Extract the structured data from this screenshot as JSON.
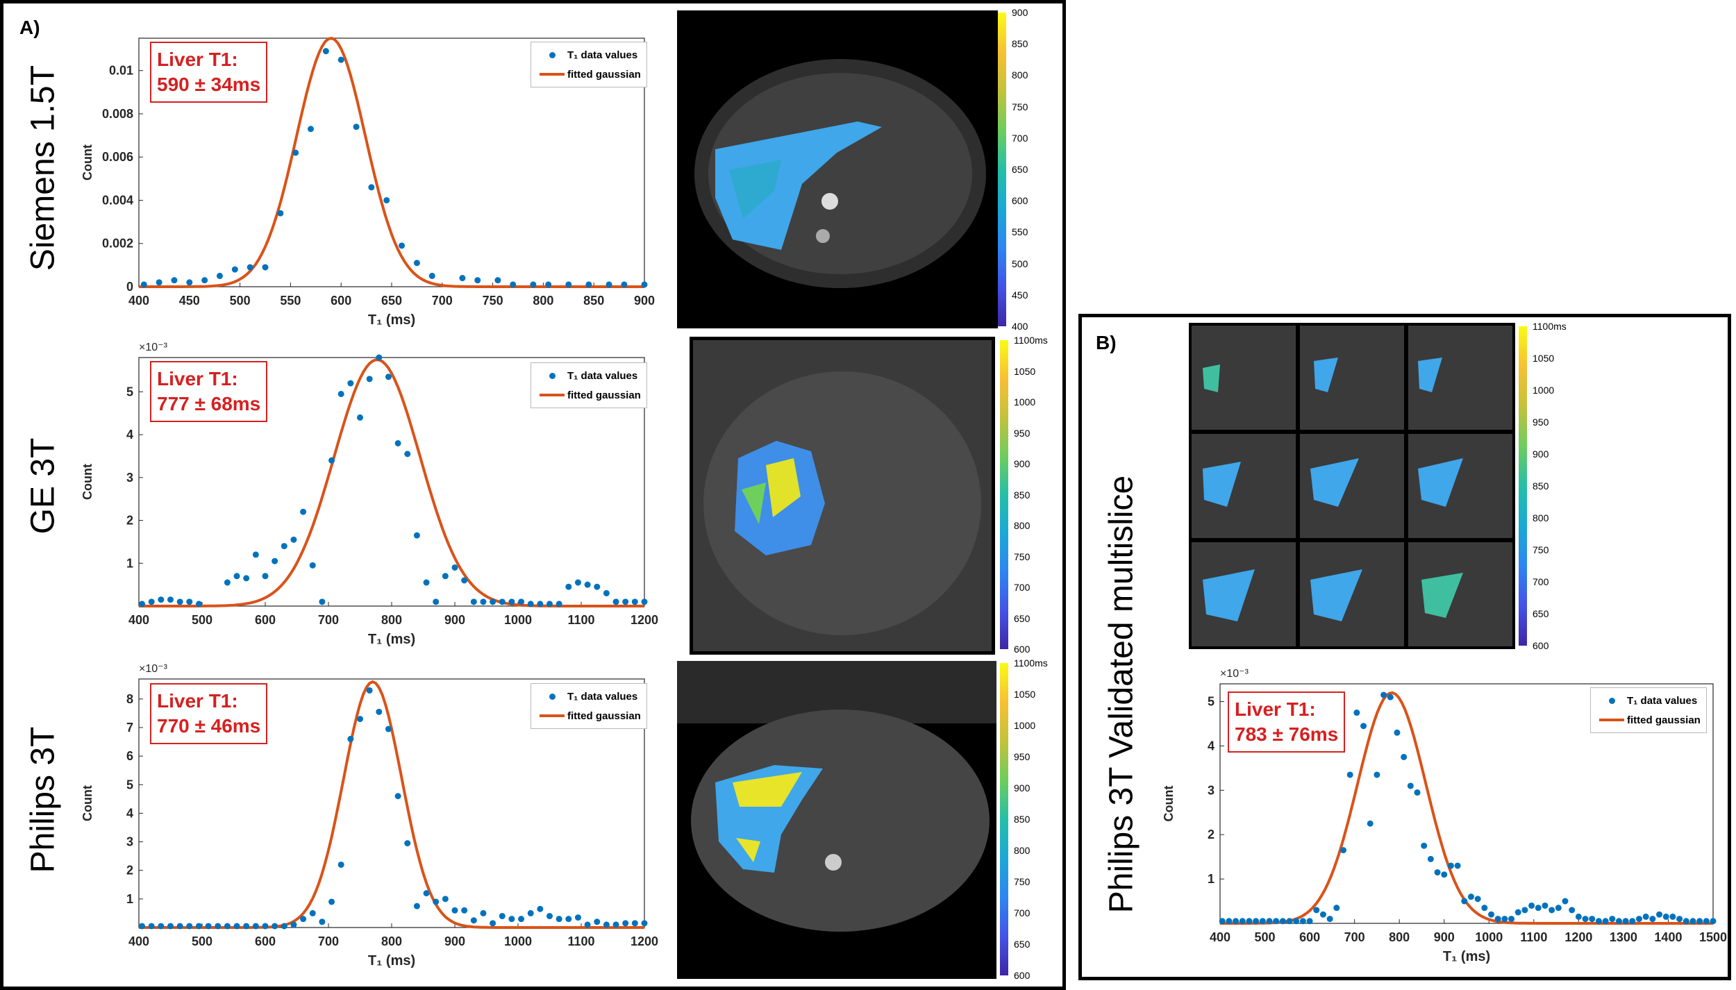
{
  "panel_a_label": "A)",
  "panel_b_label": "B)",
  "colors": {
    "accent": "#d62020",
    "data": "#0072bd",
    "fit": "#d95319"
  },
  "chart_data": [
    {
      "id": "siemens",
      "type": "scatter",
      "row_label": "Siemens 1.5T",
      "annotation": [
        "Liver T1:",
        "590 ± 34ms"
      ],
      "legend": [
        "T₁ data values",
        "fitted gaussian"
      ],
      "xlabel": "T₁ (ms)",
      "ylabel": "Count",
      "exponent": "",
      "xlim": [
        400,
        900
      ],
      "ylim": [
        0,
        0.0115
      ],
      "xticks": [
        400,
        450,
        500,
        550,
        600,
        650,
        700,
        750,
        800,
        850,
        900
      ],
      "yticks": [
        0,
        0.002,
        0.004,
        0.006,
        0.008,
        0.01
      ],
      "yticklabels": [
        "0",
        "0.002",
        "0.004",
        "0.006",
        "0.008",
        "0.01"
      ],
      "fit": {
        "mu": 590,
        "sigma": 34,
        "amp": 0.0115
      },
      "series": [
        {
          "name": "T₁ data values",
          "x": [
            405,
            420,
            435,
            450,
            465,
            480,
            495,
            510,
            525,
            540,
            555,
            570,
            585,
            600,
            615,
            630,
            645,
            660,
            675,
            690,
            720,
            735,
            755,
            770,
            790,
            805,
            825,
            845,
            865,
            880,
            900
          ],
          "y": [
            0.0001,
            0.0002,
            0.0003,
            0.0002,
            0.0003,
            0.0005,
            0.0008,
            0.0009,
            0.0009,
            0.0034,
            0.0062,
            0.0073,
            0.0109,
            0.0105,
            0.0074,
            0.0046,
            0.004,
            0.0019,
            0.0011,
            0.0005,
            0.0004,
            0.0003,
            0.0003,
            0.0001,
            0.0001,
            0.0001,
            0.0001,
            0.0001,
            0.0001,
            0.0001,
            0.0001
          ]
        }
      ],
      "colorbar": {
        "ticks": [
          "400",
          "450",
          "500",
          "550",
          "600",
          "650",
          "700",
          "750",
          "800",
          "850",
          "900"
        ],
        "top_label": "900ms"
      }
    },
    {
      "id": "ge",
      "type": "scatter",
      "row_label": "GE 3T",
      "annotation": [
        "Liver T1:",
        "777 ± 68ms"
      ],
      "legend": [
        "T₁ data values",
        "fitted gaussian"
      ],
      "xlabel": "T₁ (ms)",
      "ylabel": "Count",
      "exponent": "×10⁻³",
      "xlim": [
        400,
        1200
      ],
      "ylim": [
        0,
        5.8
      ],
      "xticks": [
        400,
        500,
        600,
        700,
        800,
        900,
        1000,
        1100,
        1200
      ],
      "yticks": [
        1,
        2,
        3,
        4,
        5
      ],
      "yticklabels": [
        "1",
        "2",
        "3",
        "4",
        "5"
      ],
      "fit": {
        "mu": 777,
        "sigma": 68,
        "amp": 5.75
      },
      "series": [
        {
          "name": "T₁ data values",
          "x": [
            405,
            420,
            435,
            450,
            465,
            480,
            495,
            540,
            555,
            570,
            585,
            600,
            615,
            630,
            645,
            660,
            675,
            690,
            705,
            720,
            735,
            750,
            765,
            780,
            795,
            810,
            825,
            840,
            855,
            870,
            885,
            900,
            915,
            930,
            945,
            960,
            975,
            990,
            1005,
            1020,
            1035,
            1050,
            1065,
            1080,
            1095,
            1110,
            1125,
            1140,
            1155,
            1170,
            1185,
            1200
          ],
          "y": [
            0.05,
            0.1,
            0.15,
            0.15,
            0.1,
            0.1,
            0.05,
            0.55,
            0.7,
            0.65,
            1.2,
            0.7,
            1.05,
            1.4,
            1.55,
            2.2,
            0.95,
            0.1,
            3.4,
            4.95,
            5.2,
            4.4,
            5.3,
            5.8,
            5.35,
            3.8,
            3.55,
            1.65,
            0.55,
            0.1,
            0.7,
            0.9,
            0.6,
            0.1,
            0.1,
            0.1,
            0.1,
            0.1,
            0.1,
            0.05,
            0.05,
            0.05,
            0.05,
            0.45,
            0.55,
            0.5,
            0.45,
            0.3,
            0.1,
            0.1,
            0.1,
            0.1
          ]
        }
      ],
      "colorbar": {
        "ticks": [
          "600",
          "650",
          "700",
          "750",
          "800",
          "850",
          "900",
          "950",
          "1000",
          "1050",
          "1100ms"
        ]
      }
    },
    {
      "id": "philips",
      "type": "scatter",
      "row_label": "Philips 3T",
      "annotation": [
        "Liver T1:",
        "770 ± 46ms"
      ],
      "legend": [
        "T₁ data values",
        "fitted gaussian"
      ],
      "xlabel": "T₁ (ms)",
      "ylabel": "Count",
      "exponent": "×10⁻³",
      "xlim": [
        400,
        1200
      ],
      "ylim": [
        0,
        8.7
      ],
      "xticks": [
        400,
        500,
        600,
        700,
        800,
        900,
        1000,
        1100,
        1200
      ],
      "yticks": [
        1,
        2,
        3,
        4,
        5,
        6,
        7,
        8
      ],
      "yticklabels": [
        "1",
        "2",
        "3",
        "4",
        "5",
        "6",
        "7",
        "8"
      ],
      "fit": {
        "mu": 770,
        "sigma": 46,
        "amp": 8.6
      },
      "series": [
        {
          "name": "T₁ data values",
          "x": [
            405,
            420,
            435,
            450,
            465,
            480,
            495,
            510,
            525,
            540,
            555,
            570,
            585,
            600,
            615,
            630,
            645,
            660,
            675,
            690,
            705,
            720,
            735,
            750,
            765,
            780,
            795,
            810,
            825,
            840,
            855,
            870,
            885,
            900,
            915,
            930,
            945,
            960,
            975,
            990,
            1005,
            1020,
            1035,
            1050,
            1065,
            1080,
            1095,
            1110,
            1125,
            1140,
            1155,
            1170,
            1185,
            1200
          ],
          "y": [
            0.05,
            0.05,
            0.05,
            0.05,
            0.05,
            0.05,
            0.05,
            0.05,
            0.05,
            0.05,
            0.05,
            0.05,
            0.05,
            0.05,
            0.05,
            0.05,
            0.1,
            0.3,
            0.5,
            0.2,
            0.9,
            2.2,
            6.6,
            7.3,
            8.3,
            7.55,
            6.95,
            4.6,
            2.95,
            0.75,
            1.2,
            0.9,
            1.0,
            0.6,
            0.6,
            0.25,
            0.5,
            0.15,
            0.4,
            0.3,
            0.3,
            0.5,
            0.65,
            0.4,
            0.3,
            0.3,
            0.35,
            0.1,
            0.2,
            0.1,
            0.1,
            0.15,
            0.15,
            0.15
          ]
        }
      ],
      "colorbar": {
        "ticks": [
          "600",
          "650",
          "700",
          "750",
          "800",
          "850",
          "900",
          "950",
          "1000",
          "1050",
          "1100ms"
        ]
      }
    },
    {
      "id": "multislice",
      "type": "scatter",
      "row_label": "Philips 3T Validated multislice",
      "annotation": [
        "Liver T1:",
        "783 ± 76ms"
      ],
      "legend": [
        "T₁ data values",
        "fitted gaussian"
      ],
      "xlabel": "T₁ (ms)",
      "ylabel": "Count",
      "exponent": "×10⁻³",
      "xlim": [
        400,
        1500
      ],
      "ylim": [
        0,
        5.4
      ],
      "xticks": [
        400,
        500,
        600,
        700,
        800,
        900,
        1000,
        1100,
        1200,
        1300,
        1400,
        1500
      ],
      "yticks": [
        1,
        2,
        3,
        4,
        5
      ],
      "yticklabels": [
        "1",
        "2",
        "3",
        "4",
        "5"
      ],
      "fit": {
        "mu": 783,
        "sigma": 76,
        "amp": 5.2
      },
      "series": [
        {
          "name": "T₁ data values",
          "x": [
            405,
            420,
            435,
            450,
            465,
            480,
            495,
            510,
            525,
            540,
            555,
            570,
            585,
            600,
            615,
            630,
            645,
            660,
            675,
            690,
            705,
            720,
            735,
            750,
            765,
            780,
            795,
            810,
            825,
            840,
            855,
            870,
            885,
            900,
            915,
            930,
            945,
            960,
            975,
            990,
            1005,
            1020,
            1035,
            1050,
            1065,
            1080,
            1095,
            1110,
            1125,
            1140,
            1155,
            1170,
            1185,
            1200,
            1215,
            1230,
            1245,
            1260,
            1275,
            1290,
            1305,
            1320,
            1335,
            1350,
            1365,
            1380,
            1395,
            1410,
            1425,
            1440,
            1455,
            1470,
            1485,
            1500
          ],
          "y": [
            0.05,
            0.05,
            0.05,
            0.05,
            0.05,
            0.05,
            0.05,
            0.05,
            0.05,
            0.05,
            0.05,
            0.05,
            0.05,
            0.05,
            0.3,
            0.2,
            0.1,
            0.35,
            1.65,
            3.35,
            4.75,
            4.45,
            2.25,
            3.35,
            5.15,
            5.1,
            4.3,
            3.75,
            3.1,
            2.95,
            1.75,
            1.45,
            1.15,
            1.1,
            1.3,
            1.3,
            0.5,
            0.6,
            0.55,
            0.35,
            0.2,
            0.1,
            0.1,
            0.1,
            0.25,
            0.3,
            0.4,
            0.35,
            0.4,
            0.3,
            0.35,
            0.5,
            0.3,
            0.15,
            0.1,
            0.1,
            0.05,
            0.05,
            0.1,
            0.05,
            0.05,
            0.05,
            0.1,
            0.15,
            0.1,
            0.2,
            0.15,
            0.15,
            0.1,
            0.05,
            0.05,
            0.05,
            0.05,
            0.05
          ]
        }
      ],
      "colorbar": {
        "ticks": [
          "600",
          "650",
          "700",
          "750",
          "800",
          "850",
          "900",
          "950",
          "1000",
          "1050",
          "1100ms"
        ]
      }
    }
  ]
}
